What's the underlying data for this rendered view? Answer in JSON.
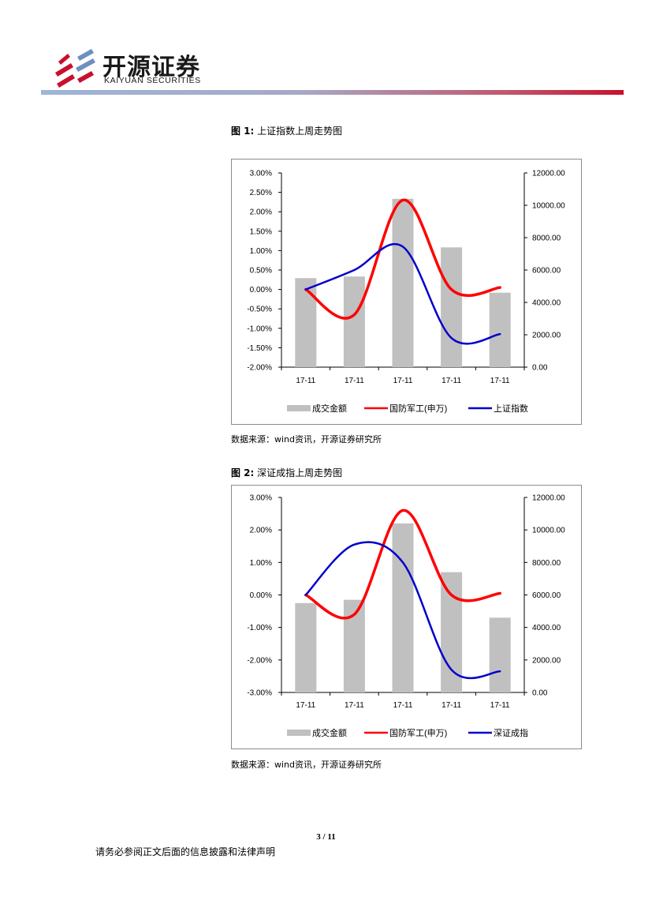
{
  "header": {
    "brand_cn": "开源证券",
    "brand_en": "KAIYUAN SECURITIES",
    "colors": {
      "logo_red": "#c8102e",
      "rule_blue": "#9fb4d6",
      "rule_red": "#c8102e"
    }
  },
  "figures": [
    {
      "label": "图 1:",
      "title": "上证指数上周走势图",
      "source": "数据来源：wind资讯，开源证券研究所"
    },
    {
      "label": "图 2:",
      "title": "深证成指上周走势图",
      "source": "数据来源：wind资讯，开源证券研究所"
    }
  ],
  "chart_data": [
    {
      "type": "bar+line",
      "categories": [
        "17-11",
        "17-11",
        "17-11",
        "17-11",
        "17-11"
      ],
      "y_left": {
        "min": -2.0,
        "max": 3.0,
        "step": 0.5,
        "ticks": [
          "3.00%",
          "2.50%",
          "2.00%",
          "1.50%",
          "1.00%",
          "0.50%",
          "0.00%",
          "-0.50%",
          "-1.00%",
          "-1.50%",
          "-2.00%"
        ]
      },
      "y_right": {
        "min": 0,
        "max": 12000,
        "step": 2000,
        "ticks": [
          "12000.00",
          "10000.00",
          "8000.00",
          "6000.00",
          "4000.00",
          "2000.00",
          "0.00"
        ]
      },
      "series": [
        {
          "name": "成交金额",
          "kind": "bar",
          "axis": "right",
          "color": "#c0c0c0",
          "values": [
            5500,
            5600,
            10400,
            7400,
            4600
          ]
        },
        {
          "name": "国防军工(申万)",
          "kind": "line",
          "axis": "left",
          "color": "#ff0000",
          "values": [
            0.0,
            -0.65,
            2.3,
            0.0,
            0.05
          ]
        },
        {
          "name": "上证指数",
          "kind": "line",
          "axis": "left",
          "color": "#0000cc",
          "values": [
            0.0,
            0.5,
            1.1,
            -1.25,
            -1.15
          ]
        }
      ]
    },
    {
      "type": "bar+line",
      "categories": [
        "17-11",
        "17-11",
        "17-11",
        "17-11",
        "17-11"
      ],
      "y_left": {
        "min": -3.0,
        "max": 3.0,
        "step": 1.0,
        "ticks": [
          "3.00%",
          "2.00%",
          "1.00%",
          "0.00%",
          "-1.00%",
          "-2.00%",
          "-3.00%"
        ]
      },
      "y_right": {
        "min": 0,
        "max": 12000,
        "step": 2000,
        "ticks": [
          "12000.00",
          "10000.00",
          "8000.00",
          "6000.00",
          "4000.00",
          "2000.00",
          "0.00"
        ]
      },
      "series": [
        {
          "name": "成交金额",
          "kind": "bar",
          "axis": "right",
          "color": "#c0c0c0",
          "values": [
            5500,
            5700,
            10400,
            7400,
            4600
          ]
        },
        {
          "name": "国防军工(申万)",
          "kind": "line",
          "axis": "left",
          "color": "#ff0000",
          "values": [
            0.0,
            -0.6,
            2.6,
            0.0,
            0.05
          ]
        },
        {
          "name": "深证成指",
          "kind": "line",
          "axis": "left",
          "color": "#0000cc",
          "values": [
            0.0,
            1.55,
            1.0,
            -2.3,
            -2.35
          ]
        }
      ]
    }
  ],
  "footer": {
    "page_number": "3 / 11",
    "disclaimer": "请务必参阅正文后面的信息披露和法律声明"
  }
}
